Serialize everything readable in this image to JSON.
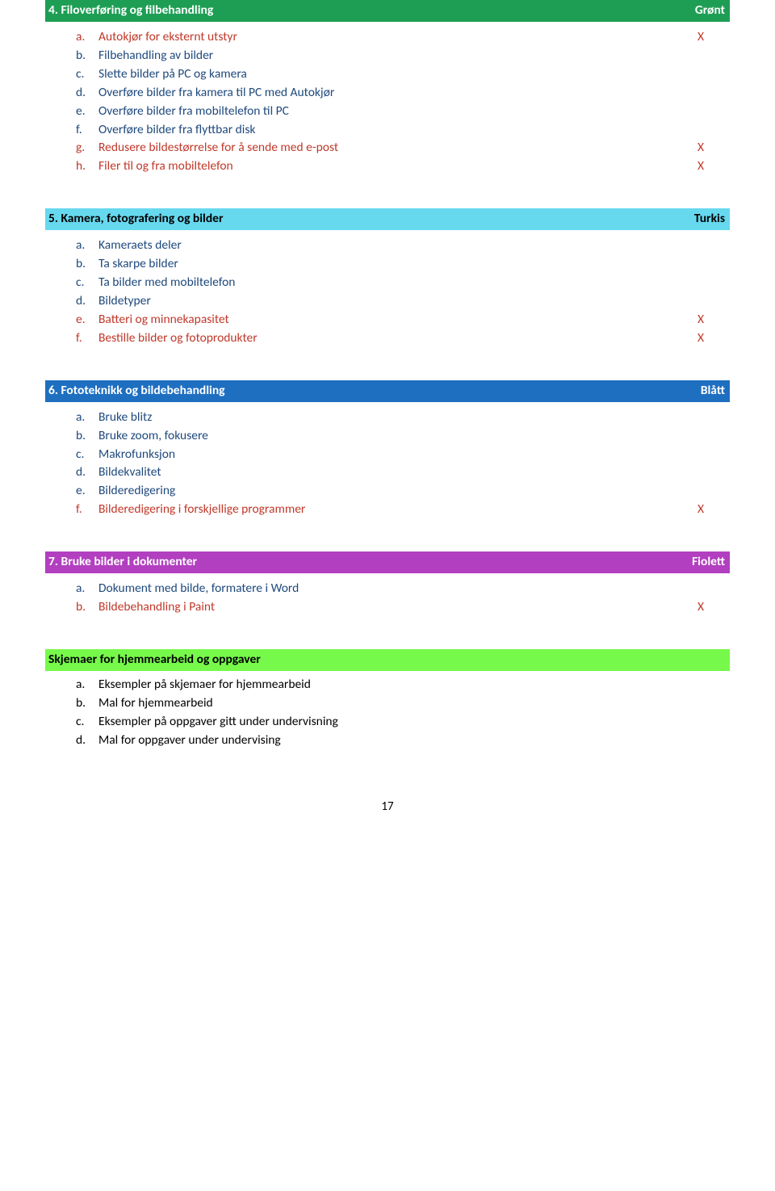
{
  "sections": [
    {
      "title": "4. Filoverføring og filbehandling",
      "tag": "Grønt",
      "bg_color": "#1e9e54",
      "text_color": "#ffffff",
      "items": [
        {
          "letter": "a.",
          "label": "Autokjør for eksternt utstyr",
          "mark": "X",
          "color": "red"
        },
        {
          "letter": "b.",
          "label": "Filbehandling av bilder",
          "mark": "",
          "color": "blue"
        },
        {
          "letter": "c.",
          "label": "Slette bilder på PC og kamera",
          "mark": "",
          "color": "blue"
        },
        {
          "letter": "d.",
          "label": "Overføre bilder fra kamera til PC med Autokjør",
          "mark": "",
          "color": "blue"
        },
        {
          "letter": "e.",
          "label": "Overføre bilder fra mobiltelefon til PC",
          "mark": "",
          "color": "blue"
        },
        {
          "letter": "f.",
          "label": "Overføre bilder fra flyttbar disk",
          "mark": "",
          "color": "blue"
        },
        {
          "letter": "g.",
          "label": "Redusere bildestørrelse for å sende med e-post",
          "mark": "X",
          "color": "red"
        },
        {
          "letter": "h.",
          "label": "Filer til og fra mobiltelefon",
          "mark": "X",
          "color": "red"
        }
      ]
    },
    {
      "title": "5. Kamera, fotografering og bilder",
      "tag": "Turkis",
      "bg_color": "#66d9ef",
      "text_color": "#000000",
      "items": [
        {
          "letter": "a.",
          "label": "Kameraets deler",
          "mark": "",
          "color": "blue"
        },
        {
          "letter": "b.",
          "label": "Ta skarpe bilder",
          "mark": "",
          "color": "blue"
        },
        {
          "letter": "c.",
          "label": "Ta bilder med mobiltelefon",
          "mark": "",
          "color": "blue"
        },
        {
          "letter": "d.",
          "label": "Bildetyper",
          "mark": "",
          "color": "blue"
        },
        {
          "letter": "e.",
          "label": "Batteri og minnekapasitet",
          "mark": "X",
          "color": "red"
        },
        {
          "letter": "f.",
          "label": "Bestille bilder og fotoprodukter",
          "mark": "X",
          "color": "red"
        }
      ]
    },
    {
      "title": "6. Fototeknikk og bildebehandling",
      "tag": "Blått",
      "bg_color": "#1f6fc1",
      "text_color": "#ffffff",
      "items": [
        {
          "letter": "a.",
          "label": "Bruke blitz",
          "mark": "",
          "color": "blue"
        },
        {
          "letter": "b.",
          "label": "Bruke zoom, fokusere",
          "mark": "",
          "color": "blue"
        },
        {
          "letter": "c.",
          "label": "Makrofunksjon",
          "mark": "",
          "color": "blue"
        },
        {
          "letter": "d.",
          "label": "Bildekvalitet",
          "mark": "",
          "color": "blue"
        },
        {
          "letter": "e.",
          "label": "Bilderedigering",
          "mark": "",
          "color": "blue"
        },
        {
          "letter": "f.",
          "label": "Bilderedigering i forskjellige programmer",
          "mark": "X",
          "color": "red"
        }
      ]
    },
    {
      "title": "7. Bruke bilder i dokumenter",
      "tag": "Fiolett",
      "bg_color": "#b23fc0",
      "text_color": "#ffffff",
      "items": [
        {
          "letter": "a.",
          "label": "Dokument med bilde, formatere i Word",
          "mark": "",
          "color": "blue"
        },
        {
          "letter": "b.",
          "label": "Bildebehandling i Paint",
          "mark": "X",
          "color": "red"
        }
      ]
    }
  ],
  "extra": {
    "title": "Skjemaer for hjemmearbeid og oppgaver",
    "bg_color": "#76f94a",
    "text_color": "#000000",
    "items": [
      {
        "letter": "a.",
        "label": "Eksempler på skjemaer for hjemmearbeid"
      },
      {
        "letter": "b.",
        "label": "Mal for hjemmearbeid"
      },
      {
        "letter": "c.",
        "label": "Eksempler på oppgaver gitt under undervisning"
      },
      {
        "letter": "d.",
        "label": "Mal for oppgaver under undervising"
      }
    ]
  },
  "page_number": "17",
  "colors": {
    "red": "#c0392b",
    "blue": "#1f497d",
    "black": "#000000"
  }
}
